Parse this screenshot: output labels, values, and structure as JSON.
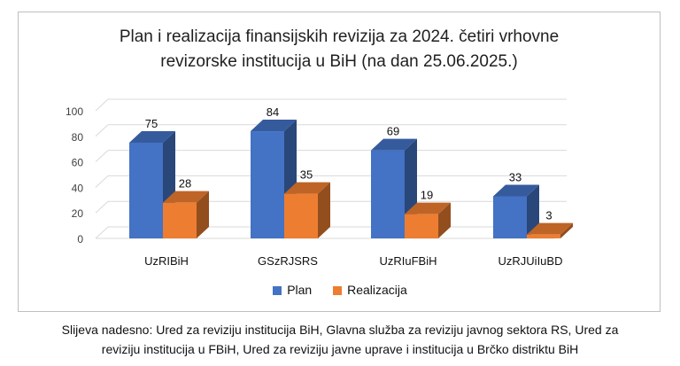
{
  "chart_data": {
    "type": "bar",
    "title": "Plan i realizacija finansijskih revizija za 2024. četiri vrhovne revizorske institucija u BiH (na dan 25.06.2025.)",
    "title_lines": [
      "Plan i realizacija finansijskih revizija za 2024. četiri vrhovne",
      "revizorske institucija u BiH (na dan 25.06.2025.)"
    ],
    "categories": [
      "UzRIBiH",
      "GSzRJSRS",
      "UzRIuFBiH",
      "UzRJUiIuBD"
    ],
    "series": [
      {
        "name": "Plan",
        "values": [
          75,
          84,
          69,
          33
        ],
        "color": "#4472c4"
      },
      {
        "name": "Realizacija",
        "values": [
          28,
          35,
          19,
          3
        ],
        "color": "#ed7d31"
      }
    ],
    "ylim": [
      0,
      100
    ],
    "yticks": [
      0,
      20,
      40,
      60,
      80,
      100
    ],
    "legend_position": "bottom",
    "style": "3d-clustered-column"
  },
  "caption_lines": [
    "Slijeva nadesno: Ured za reviziju institucija BiH, Glavna služba za reviziju javnog sektora RS, Ured za",
    "reviziju institucija u FBiH, Ured za reviziju javne uprave i institucija u Brčko distriktu BiH"
  ]
}
